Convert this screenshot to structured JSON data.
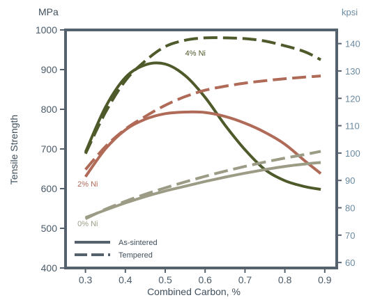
{
  "chart_data": {
    "type": "line",
    "title": "",
    "xlabel": "Combined Carbon, %",
    "ylabel": "Tensile Strength",
    "y_unit": "MPa",
    "y2_unit": "kpsi",
    "xlim": [
      0.25,
      0.93
    ],
    "ylim": [
      400,
      1000
    ],
    "y2lim": [
      58,
      145
    ],
    "x_ticks": [
      "0.3",
      "0.4",
      "0.5",
      "0.6",
      "0.7",
      "0.8",
      "0.9"
    ],
    "y_ticks": [
      "400",
      "500",
      "600",
      "700",
      "800",
      "900",
      "1000"
    ],
    "y2_ticks": [
      "60",
      "70",
      "80",
      "90",
      "100",
      "110",
      "120",
      "130",
      "140"
    ],
    "grid": false,
    "legend_position": "bottom-left",
    "legend": [
      {
        "label": "As-sintered",
        "style": "solid"
      },
      {
        "label": "Tempered",
        "style": "dashed"
      }
    ],
    "series": [
      {
        "name": "4% Ni",
        "condition": "As-sintered",
        "color": "#4e5a2a",
        "x": [
          0.3,
          0.35,
          0.4,
          0.45,
          0.5,
          0.55,
          0.6,
          0.65,
          0.7,
          0.75,
          0.8,
          0.85,
          0.89
        ],
        "y": [
          692,
          805,
          880,
          912,
          914,
          885,
          830,
          760,
          698,
          648,
          620,
          605,
          598
        ]
      },
      {
        "name": "4% Ni",
        "condition": "Tempered",
        "color": "#4e5a2a",
        "x": [
          0.3,
          0.35,
          0.4,
          0.45,
          0.5,
          0.55,
          0.6,
          0.65,
          0.7,
          0.75,
          0.8,
          0.85,
          0.89
        ],
        "y": [
          688,
          792,
          872,
          922,
          958,
          974,
          980,
          980,
          978,
          972,
          960,
          945,
          925
        ]
      },
      {
        "name": "2% Ni",
        "condition": "As-sintered",
        "color": "#b06a58",
        "x": [
          0.3,
          0.35,
          0.4,
          0.45,
          0.5,
          0.55,
          0.6,
          0.65,
          0.7,
          0.75,
          0.8,
          0.85,
          0.89
        ],
        "y": [
          630,
          700,
          748,
          775,
          789,
          793,
          792,
          782,
          765,
          742,
          712,
          670,
          638
        ]
      },
      {
        "name": "2% Ni",
        "condition": "Tempered",
        "color": "#b06a58",
        "x": [
          0.3,
          0.35,
          0.4,
          0.45,
          0.5,
          0.55,
          0.6,
          0.65,
          0.7,
          0.75,
          0.8,
          0.85,
          0.89
        ],
        "y": [
          648,
          706,
          750,
          782,
          810,
          832,
          848,
          858,
          866,
          872,
          877,
          881,
          884
        ]
      },
      {
        "name": "0% Ni",
        "condition": "As-sintered",
        "color": "#9c9c86",
        "x": [
          0.3,
          0.35,
          0.4,
          0.45,
          0.5,
          0.55,
          0.6,
          0.65,
          0.7,
          0.75,
          0.8,
          0.85,
          0.89
        ],
        "y": [
          527,
          546,
          564,
          580,
          594,
          606,
          618,
          629,
          639,
          648,
          656,
          662,
          666
        ]
      },
      {
        "name": "0% Ni",
        "condition": "Tempered",
        "color": "#9c9c86",
        "x": [
          0.3,
          0.35,
          0.4,
          0.45,
          0.5,
          0.55,
          0.6,
          0.65,
          0.7,
          0.75,
          0.8,
          0.85,
          0.89
        ],
        "y": [
          524,
          548,
          568,
          586,
          602,
          617,
          631,
          644,
          656,
          667,
          677,
          686,
          694
        ]
      }
    ],
    "annotations": [
      {
        "text": "4% Ni",
        "x": 0.55,
        "y": 935,
        "color": "#4e5a2a"
      },
      {
        "text": "2% Ni",
        "x": 0.28,
        "y": 605,
        "color": "#b06a58"
      },
      {
        "text": "0% Ni",
        "x": 0.28,
        "y": 505,
        "color": "#9c9c86"
      }
    ]
  }
}
